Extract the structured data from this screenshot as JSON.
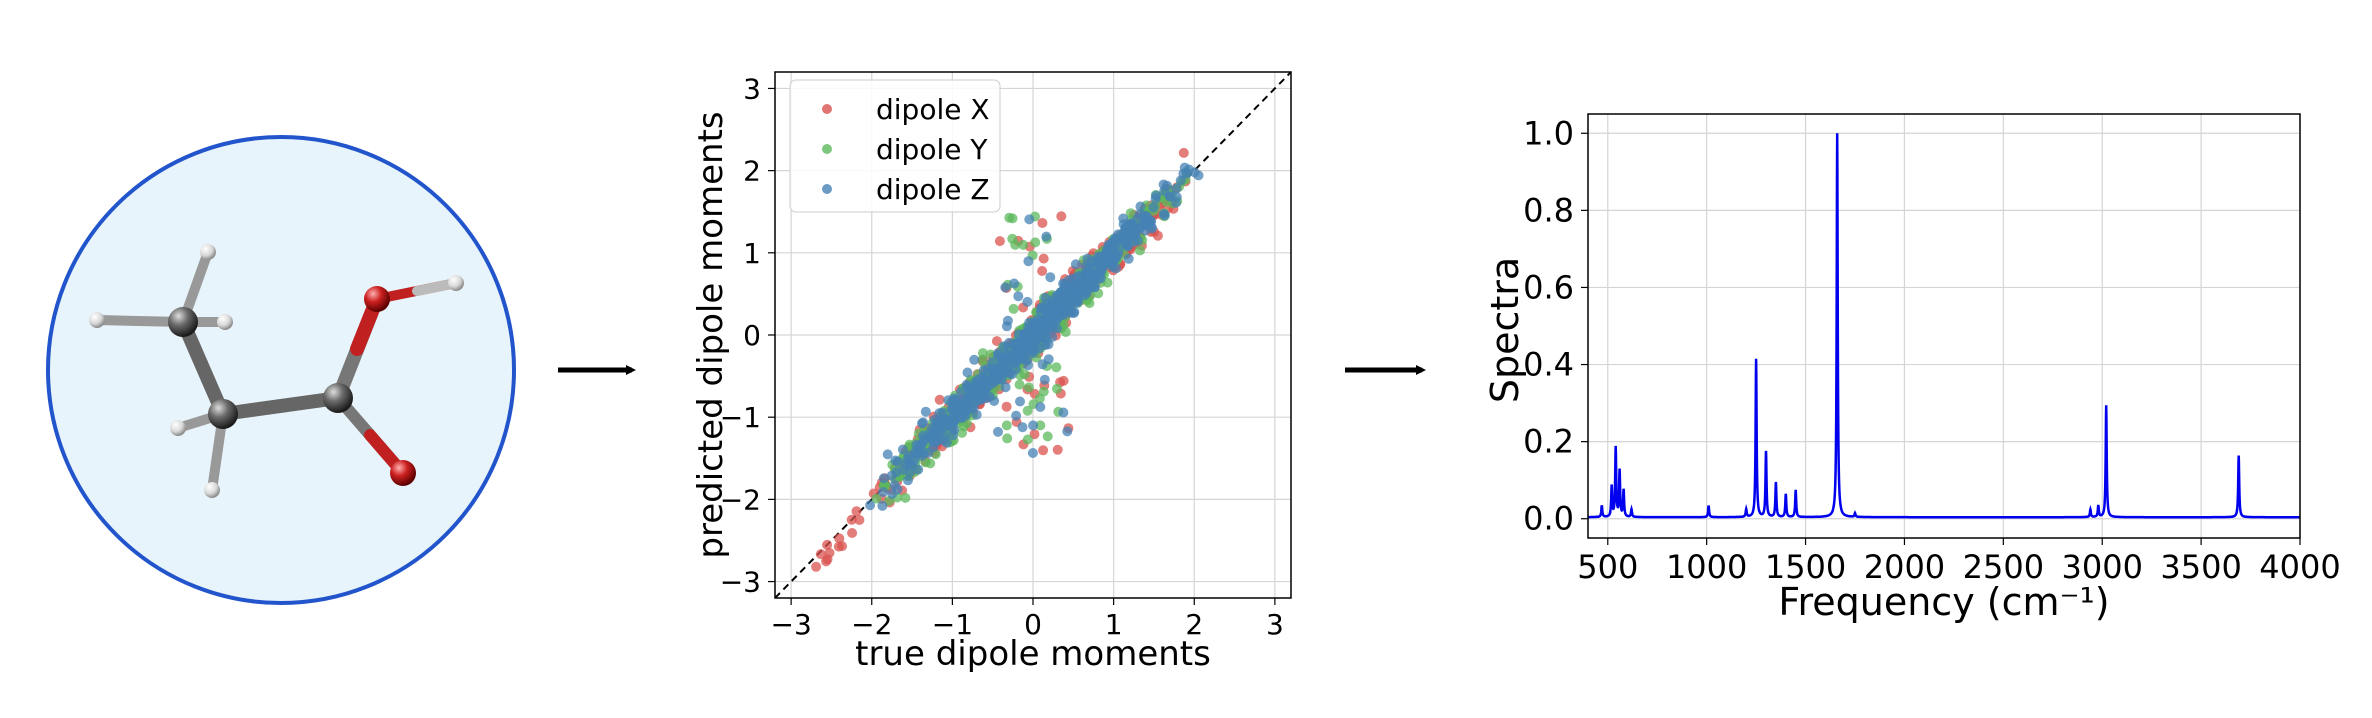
{
  "molecule": {
    "atoms": [
      {
        "element": "C",
        "color": "#555555"
      },
      {
        "element": "C",
        "color": "#555555"
      },
      {
        "element": "C",
        "color": "#555555"
      },
      {
        "element": "O",
        "color": "#cc2222"
      },
      {
        "element": "O",
        "color": "#cc2222"
      },
      {
        "element": "H",
        "color": "#e6e6e6"
      }
    ],
    "circle_fill": "#e8f4fb",
    "circle_stroke": "#2255cc"
  },
  "chart_data": [
    {
      "type": "scatter",
      "xlabel": "true dipole moments",
      "ylabel": "predicted dipole moments",
      "xlim": [
        -3.2,
        3.2
      ],
      "ylim": [
        -3.2,
        3.2
      ],
      "xticks": [
        "−3",
        "−2",
        "−1",
        "0",
        "1",
        "2",
        "3"
      ],
      "yticks": [
        "−3",
        "−2",
        "−1",
        "0",
        "1",
        "2",
        "3"
      ],
      "grid": true,
      "reference_line": "y = x (dashed)",
      "legend_position": "top-left",
      "series": [
        {
          "name": "dipole X",
          "color": "#d9534f"
        },
        {
          "name": "dipole Y",
          "color": "#5cb85c"
        },
        {
          "name": "dipole Z",
          "color": "#4682b4"
        }
      ],
      "points_per_series": 600
    },
    {
      "type": "line",
      "xlabel": "Frequency (cm⁻¹)",
      "ylabel": "Spectra",
      "xlim": [
        400,
        4000
      ],
      "ylim": [
        -0.05,
        1.05
      ],
      "xticks": [
        500,
        1000,
        1500,
        2000,
        2500,
        3000,
        3500,
        4000
      ],
      "yticks": [
        "0.0",
        "0.2",
        "0.4",
        "0.6",
        "0.8",
        "1.0"
      ],
      "grid": true,
      "color": "#0000ee",
      "peaks": [
        {
          "x": 470,
          "y": 0.03
        },
        {
          "x": 520,
          "y": 0.08
        },
        {
          "x": 540,
          "y": 0.18
        },
        {
          "x": 560,
          "y": 0.12
        },
        {
          "x": 580,
          "y": 0.07
        },
        {
          "x": 620,
          "y": 0.02
        },
        {
          "x": 1010,
          "y": 0.03
        },
        {
          "x": 1200,
          "y": 0.02
        },
        {
          "x": 1250,
          "y": 0.41
        },
        {
          "x": 1300,
          "y": 0.17
        },
        {
          "x": 1350,
          "y": 0.09
        },
        {
          "x": 1400,
          "y": 0.06
        },
        {
          "x": 1450,
          "y": 0.07
        },
        {
          "x": 1660,
          "y": 1.0
        },
        {
          "x": 1750,
          "y": 0.01
        },
        {
          "x": 2940,
          "y": 0.02
        },
        {
          "x": 2980,
          "y": 0.03
        },
        {
          "x": 3020,
          "y": 0.29
        },
        {
          "x": 3690,
          "y": 0.16
        }
      ]
    }
  ]
}
